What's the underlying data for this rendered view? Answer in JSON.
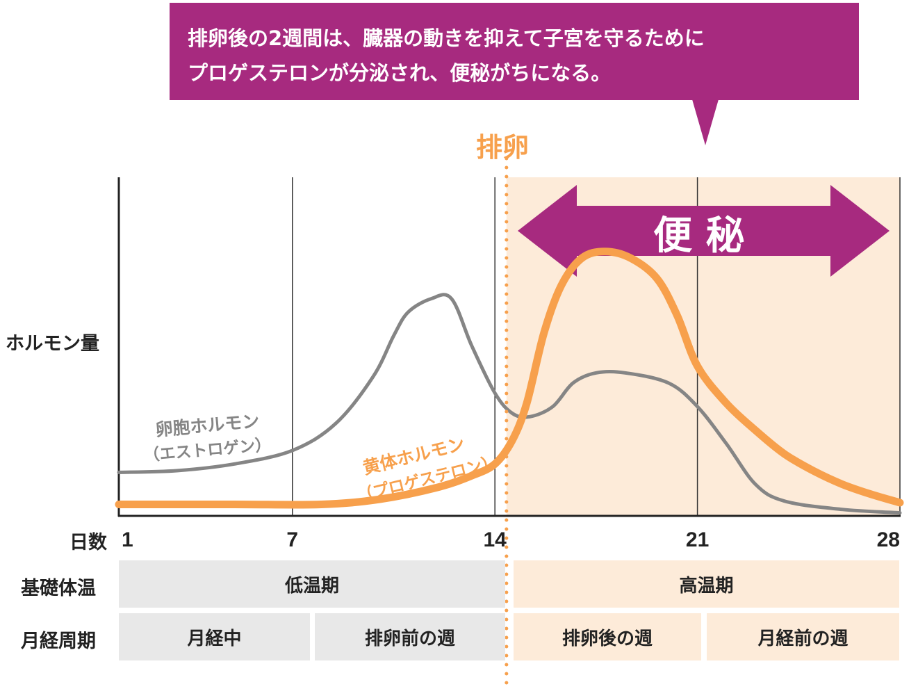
{
  "callout": {
    "line1": "排卵後の2週間は、臓器の動きを抑えて子宮を守るために",
    "line2": "プロゲステロンが分泌され、便秘がちになる。"
  },
  "ovulation_label": "排卵",
  "constipation_label": "便 秘",
  "y_axis_label": "ホルモン量",
  "x_axis_label": "日数",
  "colors": {
    "accent": "#a72a7f",
    "progesterone": "#f7a04c",
    "estrogen": "#858585",
    "high_temp_bg": "#fdebd9",
    "low_temp_bg": "#e8e8e8"
  },
  "chart_data": {
    "type": "line",
    "x_ticks": [
      1,
      7,
      14,
      21,
      28
    ],
    "xlim": [
      1,
      28
    ],
    "ylim": [
      0,
      100
    ],
    "ovulation_day": 14.4,
    "shaded_range": [
      14.4,
      28
    ],
    "series": [
      {
        "name": "卵胞ホルモン",
        "name_sub": "（エストロゲン）",
        "color": "#858585",
        "points": [
          [
            1,
            12.5
          ],
          [
            3,
            13
          ],
          [
            5,
            15
          ],
          [
            7,
            19
          ],
          [
            8.5,
            27
          ],
          [
            9.8,
            41
          ],
          [
            10.5,
            53
          ],
          [
            11,
            60
          ],
          [
            11.8,
            64
          ],
          [
            12.5,
            64
          ],
          [
            13.2,
            50
          ],
          [
            14,
            36
          ],
          [
            14.6,
            30
          ],
          [
            15.2,
            29
          ],
          [
            16,
            32
          ],
          [
            16.7,
            39
          ],
          [
            17.5,
            42
          ],
          [
            18.5,
            42
          ],
          [
            20,
            39
          ],
          [
            21,
            32
          ],
          [
            22,
            21
          ],
          [
            23,
            9
          ],
          [
            24,
            4
          ],
          [
            26,
            1.5
          ],
          [
            28,
            0.5
          ]
        ]
      },
      {
        "name": "黄体ホルモン",
        "name_sub": "（プロゲステロン）",
        "color": "#f7a04c",
        "points": [
          [
            1,
            3
          ],
          [
            5,
            3
          ],
          [
            8,
            3
          ],
          [
            10,
            4.5
          ],
          [
            12,
            8
          ],
          [
            13.2,
            11.5
          ],
          [
            14,
            15
          ],
          [
            14.6,
            22
          ],
          [
            15.1,
            33
          ],
          [
            15.7,
            54
          ],
          [
            16.3,
            68
          ],
          [
            17,
            76
          ],
          [
            17.8,
            78
          ],
          [
            18.7,
            76
          ],
          [
            19.6,
            70
          ],
          [
            20.3,
            59
          ],
          [
            21,
            44
          ],
          [
            22,
            33
          ],
          [
            23,
            25
          ],
          [
            24,
            18
          ],
          [
            25,
            13
          ],
          [
            26,
            9
          ],
          [
            27,
            6
          ],
          [
            28,
            3.5
          ]
        ]
      }
    ]
  },
  "table": {
    "basal_temp_label": "基礎体温",
    "cycle_label": "月経周期",
    "low_temp": "低温期",
    "high_temp": "高温期",
    "phases": [
      "月経中",
      "排卵前の週",
      "排卵後の週",
      "月経前の週"
    ]
  }
}
